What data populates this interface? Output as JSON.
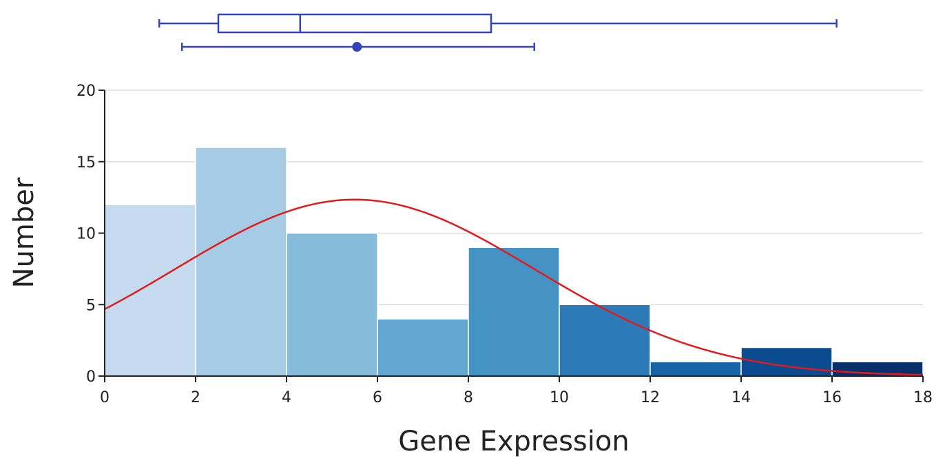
{
  "chart_data": {
    "type": "bar",
    "subtype": "histogram",
    "title": "",
    "xlabel": "Gene Expression",
    "ylabel": "Number",
    "xlim": [
      0,
      18
    ],
    "ylim": [
      0,
      20
    ],
    "x_ticks": [
      0,
      2,
      4,
      6,
      8,
      10,
      12,
      14,
      16,
      18
    ],
    "y_ticks": [
      0,
      5,
      10,
      15,
      20
    ],
    "grid": "horizontal",
    "legend": "none",
    "bins": [
      {
        "x0": 0,
        "x1": 2,
        "count": 12,
        "color": "#c6dbef"
      },
      {
        "x0": 2,
        "x1": 4,
        "count": 16,
        "color": "#a6cbe4"
      },
      {
        "x0": 4,
        "x1": 6,
        "count": 10,
        "color": "#85bbdb"
      },
      {
        "x0": 6,
        "x1": 8,
        "count": 4,
        "color": "#63a8d2"
      },
      {
        "x0": 8,
        "x1": 10,
        "count": 9,
        "color": "#4592c5"
      },
      {
        "x0": 10,
        "x1": 12,
        "count": 5,
        "color": "#2c7bb8"
      },
      {
        "x0": 12,
        "x1": 14,
        "count": 1,
        "color": "#1763a8"
      },
      {
        "x0": 14,
        "x1": 16,
        "count": 2,
        "color": "#0b4b8f"
      },
      {
        "x0": 16,
        "x1": 18,
        "count": 1,
        "color": "#08306b"
      }
    ],
    "fit_curve": {
      "type": "normal",
      "mean": 5.5,
      "sd": 3.95,
      "peak": 12.35,
      "color": "#e31a1c"
    },
    "boxplot": {
      "min": 1.2,
      "q1": 2.5,
      "median": 4.3,
      "q3": 8.5,
      "max": 16.1,
      "color": "#3344bb"
    },
    "mean_interval": {
      "mean": 5.55,
      "low": 1.7,
      "high": 9.45,
      "color": "#3344bb"
    },
    "colors": {
      "axis": "#222222",
      "grid": "#dddddd",
      "bar_edge": "#ffffff"
    }
  }
}
